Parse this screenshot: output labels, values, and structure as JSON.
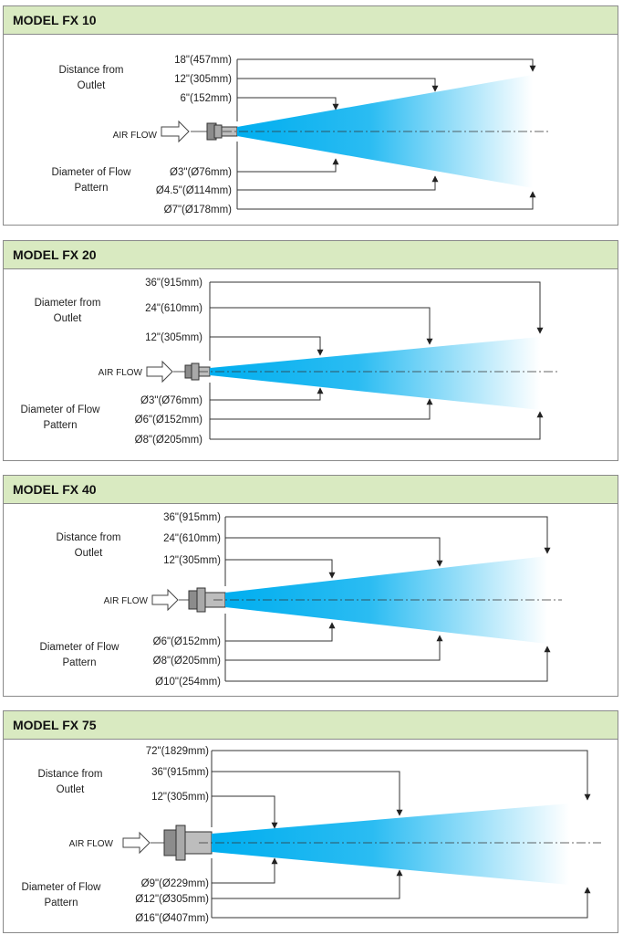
{
  "labels": {
    "air_flow": "AIR FLOW",
    "distance_line1": "Distance from",
    "distance_line2": "Outlet",
    "diameter_from_line1": "Diameter from",
    "diameter_from_line2": "Outlet",
    "diameter_line1": "Diameter of Flow",
    "diameter_line2": "Pattern"
  },
  "colors": {
    "header_bg": "#d9eac1",
    "flow_start": "#00aeef",
    "flow_end": "#ffffff"
  },
  "panels": [
    {
      "title": "MODEL FX 10",
      "distances": [
        "18\"(457mm)",
        "12\"(305mm)",
        "6\"(152mm)"
      ],
      "diameters": [
        "Ø3\"(Ø76mm)",
        "Ø4.5\"(Ø114mm)",
        "Ø7\"(Ø178mm)"
      ]
    },
    {
      "title": "MODEL FX 20",
      "distances": [
        "36\"(915mm)",
        "24\"(610mm)",
        "12\"(305mm)"
      ],
      "diameters": [
        "Ø3\"(Ø76mm)",
        "Ø6\"(Ø152mm)",
        "Ø8\"(Ø205mm)"
      ]
    },
    {
      "title": "MODEL FX 40",
      "distances": [
        "36\"(915mm)",
        "24\"(610mm)",
        "12\"(305mm)"
      ],
      "diameters": [
        "Ø6\"(Ø152mm)",
        "Ø8\"(Ø205mm)",
        "Ø10\"(254mm)"
      ]
    },
    {
      "title": "MODEL FX 75",
      "distances": [
        "72\"(1829mm)",
        "36\"(915mm)",
        "12\"(305mm)"
      ],
      "diameters": [
        "Ø9\"(Ø229mm)",
        "Ø12\"(Ø305mm)",
        "Ø16\"(Ø407mm)"
      ]
    }
  ]
}
